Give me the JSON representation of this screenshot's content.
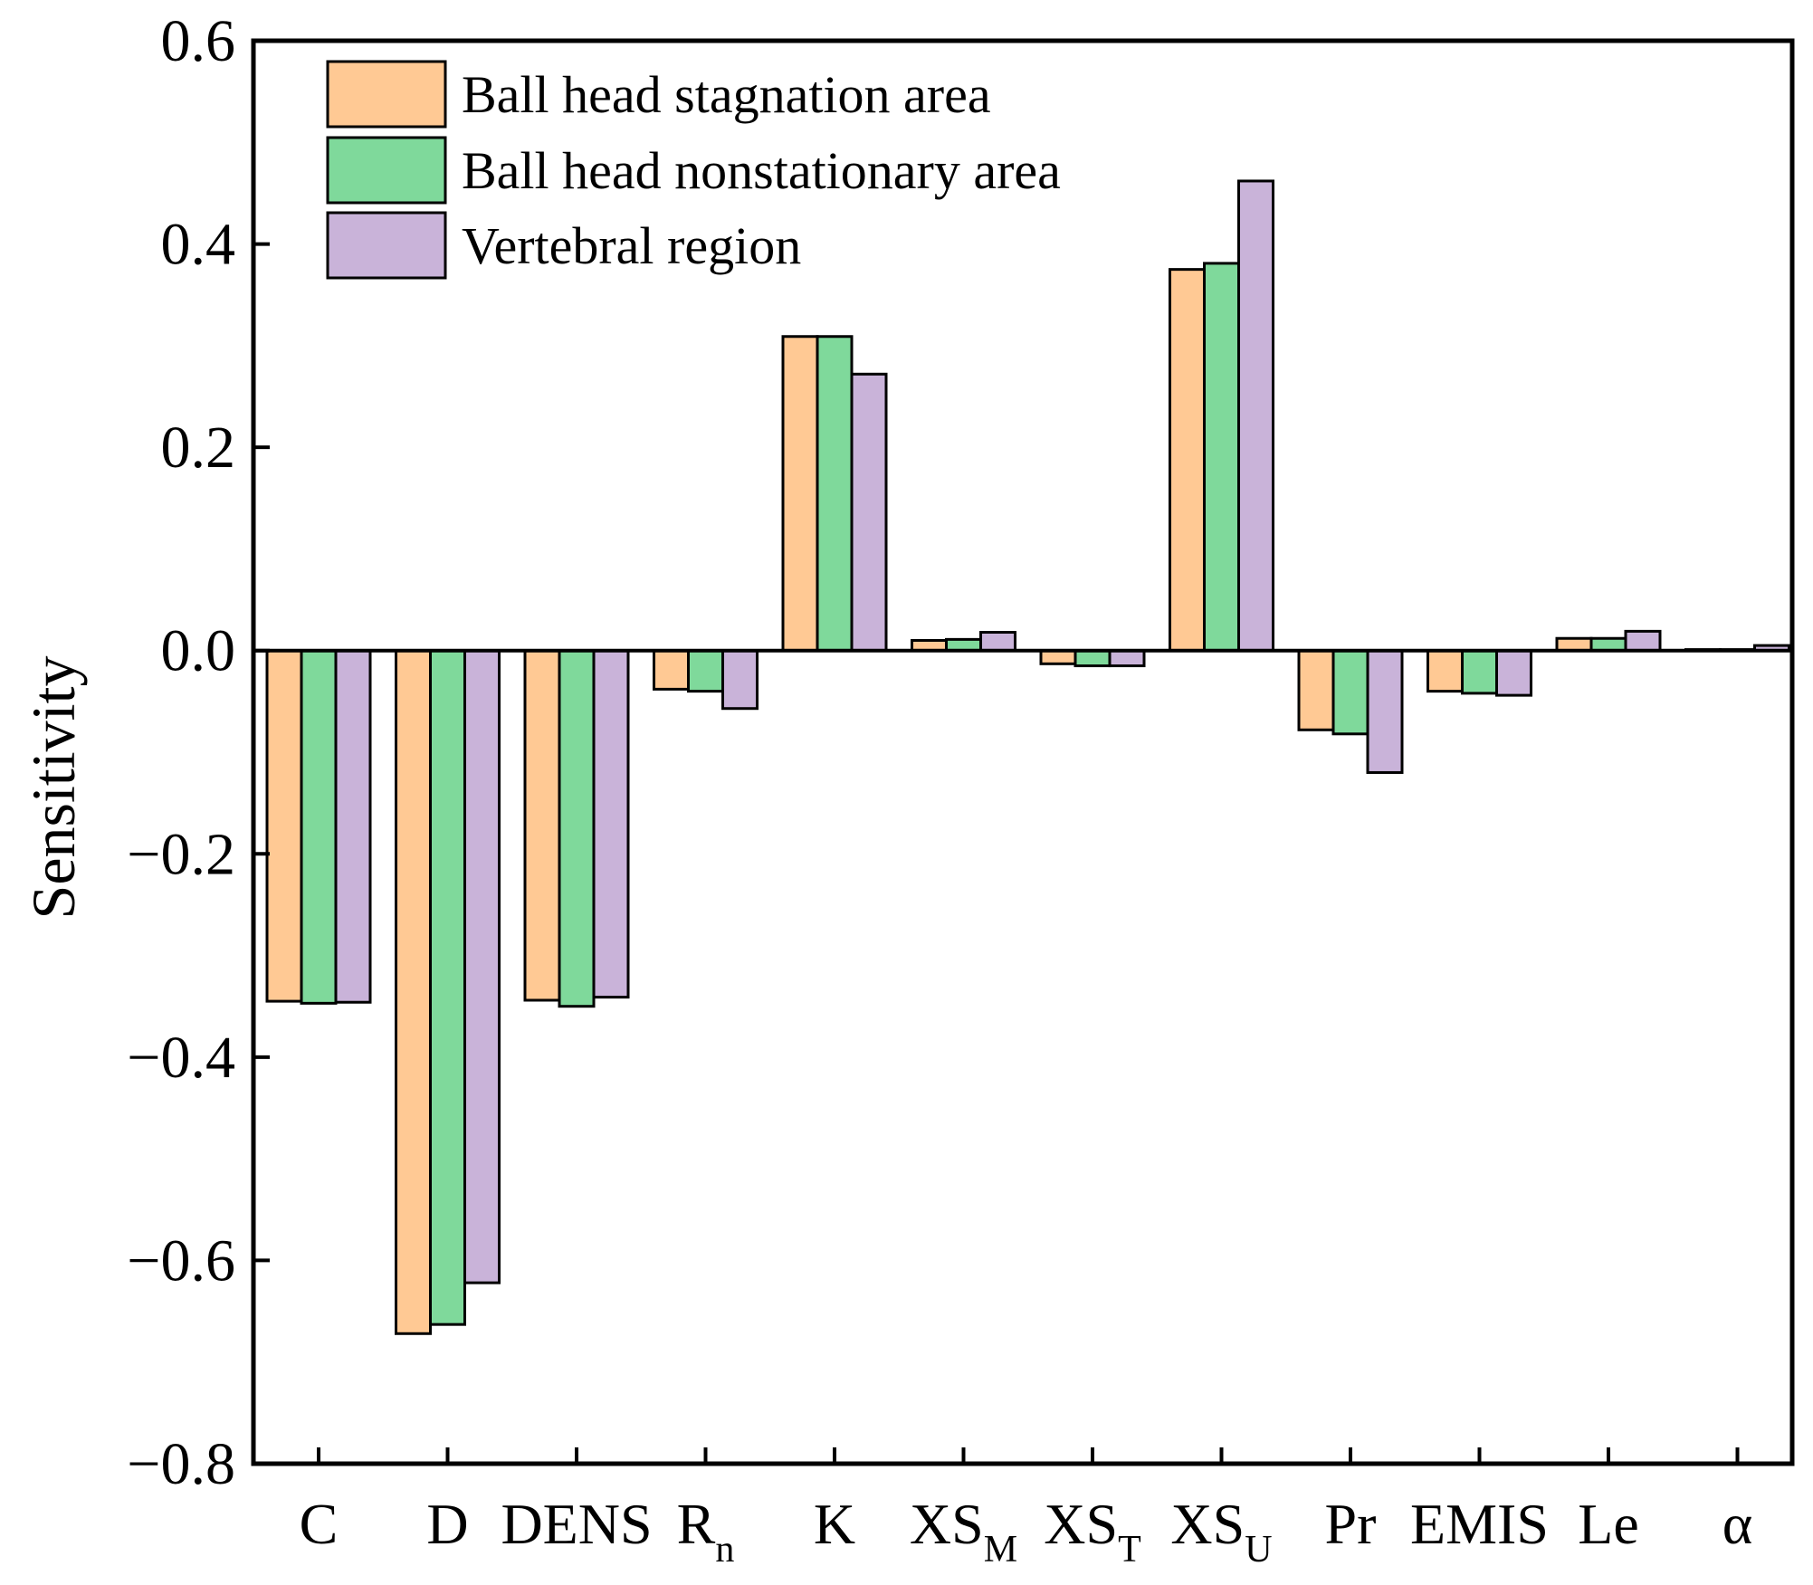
{
  "chart_data": {
    "type": "bar",
    "title": "",
    "xlabel": "",
    "ylabel": "Sensitivity",
    "ylim": [
      -0.8,
      0.6
    ],
    "yticks": [
      "0.6",
      "0.4",
      "0.2",
      "0.0",
      "−0.2",
      "−0.4",
      "−0.6",
      "−0.8"
    ],
    "ytick_values": [
      0.6,
      0.4,
      0.2,
      0.0,
      -0.2,
      -0.4,
      -0.6,
      -0.8
    ],
    "legend_position": "top-left",
    "categories": [
      {
        "base": "C",
        "sub": ""
      },
      {
        "base": "D",
        "sub": ""
      },
      {
        "base": "DENS",
        "sub": ""
      },
      {
        "base": "R",
        "sub": "n"
      },
      {
        "base": "K",
        "sub": ""
      },
      {
        "base": "XS",
        "sub": "M"
      },
      {
        "base": "XS",
        "sub": "T"
      },
      {
        "base": "XS",
        "sub": "U"
      },
      {
        "base": "Pr",
        "sub": ""
      },
      {
        "base": "EMIS",
        "sub": ""
      },
      {
        "base": "Le",
        "sub": ""
      },
      {
        "base": "α",
        "sub": ""
      }
    ],
    "series": [
      {
        "name": "Ball head stagnation area",
        "color": "#FFC994",
        "values": [
          -0.345,
          -0.672,
          -0.344,
          -0.038,
          0.309,
          0.01,
          -0.013,
          0.375,
          -0.078,
          -0.04,
          0.012,
          0.001
        ]
      },
      {
        "name": "Ball head nonstationary area",
        "color": "#7FD99B",
        "values": [
          -0.347,
          -0.663,
          -0.35,
          -0.04,
          0.309,
          0.011,
          -0.015,
          0.381,
          -0.082,
          -0.042,
          0.012,
          0.001
        ]
      },
      {
        "name": "Vertebral region",
        "color": "#C9B3D9",
        "values": [
          -0.346,
          -0.622,
          -0.341,
          -0.057,
          0.272,
          0.018,
          -0.015,
          0.462,
          -0.12,
          -0.044,
          0.019,
          0.005
        ]
      }
    ]
  }
}
